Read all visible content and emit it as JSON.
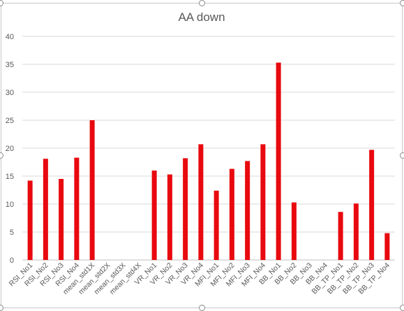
{
  "chart_data": {
    "type": "bar",
    "title": "AA down",
    "xlabel": "",
    "ylabel": "",
    "ylim": [
      0,
      40
    ],
    "yticks": [
      0,
      5,
      10,
      15,
      20,
      25,
      30,
      35,
      40
    ],
    "grid": true,
    "legend": "none",
    "bar_color": "#e8090f",
    "categories": [
      "RSI_No1",
      "RSI_No2",
      "RSI_No3",
      "RSI_No4",
      "mean_std1X",
      "mean_std2X",
      "mean_std3X",
      "mean_std4X",
      "VR_No1",
      "VR_No2",
      "VR_No3",
      "VR_No4",
      "MFI_No1",
      "MFI_No2",
      "MFI_No3",
      "MFI_No4",
      "BB_No1",
      "BB_No2",
      "BB_No3",
      "BB_No4",
      "BB_TP_No1",
      "BB_TP_No2",
      "BB_TP_No3",
      "BB_TP_No4"
    ],
    "values": [
      14.2,
      18.1,
      14.5,
      18.3,
      25.0,
      0,
      0,
      0,
      16.0,
      15.3,
      18.2,
      20.7,
      12.4,
      16.3,
      17.7,
      20.7,
      35.3,
      10.3,
      0,
      0,
      8.6,
      10.1,
      19.7,
      4.8
    ]
  }
}
